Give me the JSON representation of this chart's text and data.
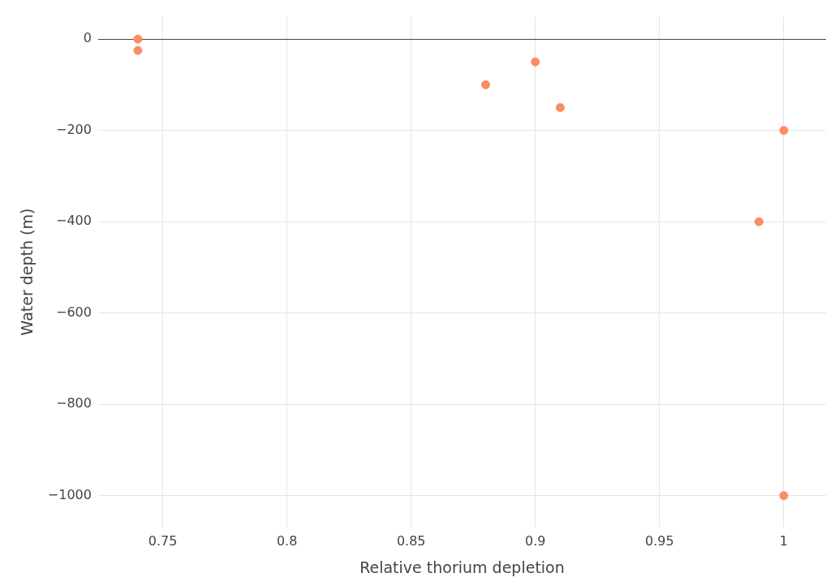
{
  "chart_data": {
    "type": "scatter",
    "xlabel": "Relative thorium depletion",
    "ylabel": "Water depth (m)",
    "x": [
      0.74,
      0.74,
      0.88,
      0.9,
      0.91,
      1,
      0.99,
      1
    ],
    "series": [
      {
        "color": "#fc8d62",
        "values": [
          0,
          -25,
          -100,
          -50,
          -150,
          -200,
          -400,
          -1000
        ]
      }
    ],
    "xlim": [
      0.724,
      1.017
    ],
    "ylim": [
      -1070,
      50
    ],
    "xticks": [
      0.75,
      0.8,
      0.85,
      0.9,
      0.95,
      1
    ],
    "yticks": [
      0,
      -200,
      -400,
      -600,
      -800,
      -1000
    ],
    "grid": true,
    "legend": false,
    "marker": "circle"
  }
}
